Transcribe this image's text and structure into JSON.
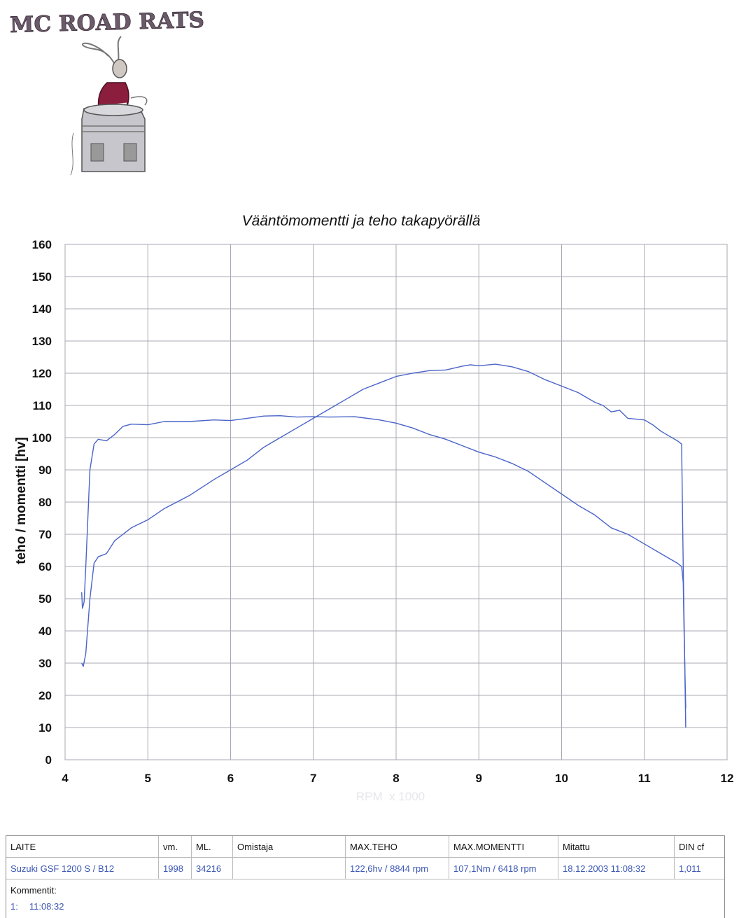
{
  "logo": {
    "text": "MC ROAD RATS"
  },
  "colors": {
    "curve": "#4a64c8",
    "grid": "#a9a9b3",
    "logo": "#6b5a6a",
    "suit": "#8a1e3c",
    "table_values": "#3a56b4"
  },
  "chart_data": {
    "type": "line",
    "title": "Vääntömomentti ja teho takapyörällä",
    "xlabel": "RPM  x 1000",
    "ylabel": "teho / momentti [hv]",
    "xlim": [
      4,
      12
    ],
    "ylim": [
      0,
      160
    ],
    "x_ticks": [
      "4",
      "5",
      "6",
      "7",
      "8",
      "9",
      "10",
      "11",
      "12"
    ],
    "y_ticks": [
      "0",
      "10",
      "20",
      "30",
      "40",
      "50",
      "60",
      "70",
      "80",
      "90",
      "100",
      "110",
      "120",
      "130",
      "140",
      "150",
      "160"
    ],
    "grid": true,
    "series": [
      {
        "points": [
          [
            4.2,
            30
          ],
          [
            4.22,
            29
          ],
          [
            4.25,
            33
          ],
          [
            4.3,
            50
          ],
          [
            4.35,
            61
          ],
          [
            4.4,
            63
          ],
          [
            4.5,
            64
          ],
          [
            4.6,
            68
          ],
          [
            4.8,
            72
          ],
          [
            5.0,
            74.5
          ],
          [
            5.2,
            78
          ],
          [
            5.5,
            82
          ],
          [
            5.8,
            87
          ],
          [
            6.0,
            90
          ],
          [
            6.2,
            93
          ],
          [
            6.4,
            97
          ],
          [
            6.6,
            100
          ],
          [
            6.8,
            103
          ],
          [
            7.0,
            106
          ],
          [
            7.2,
            109
          ],
          [
            7.4,
            112
          ],
          [
            7.6,
            115
          ],
          [
            7.8,
            117
          ],
          [
            8.0,
            119
          ],
          [
            8.2,
            120
          ],
          [
            8.4,
            120.8
          ],
          [
            8.6,
            121
          ],
          [
            8.8,
            122.2
          ],
          [
            8.9,
            122.6
          ],
          [
            9.0,
            122.3
          ],
          [
            9.2,
            122.8
          ],
          [
            9.4,
            122
          ],
          [
            9.6,
            120.5
          ],
          [
            9.8,
            118
          ],
          [
            10.0,
            116
          ],
          [
            10.2,
            114
          ],
          [
            10.4,
            111
          ],
          [
            10.5,
            110
          ],
          [
            10.6,
            108
          ],
          [
            10.7,
            108.5
          ],
          [
            10.8,
            106
          ],
          [
            11.0,
            105.5
          ],
          [
            11.1,
            104
          ],
          [
            11.2,
            102
          ],
          [
            11.3,
            100.5
          ],
          [
            11.4,
            99
          ],
          [
            11.45,
            98
          ],
          [
            11.47,
            60
          ],
          [
            11.5,
            10
          ]
        ]
      },
      {
        "points": [
          [
            4.2,
            52
          ],
          [
            4.21,
            47
          ],
          [
            4.23,
            49
          ],
          [
            4.25,
            60
          ],
          [
            4.3,
            90
          ],
          [
            4.35,
            98
          ],
          [
            4.4,
            99.5
          ],
          [
            4.5,
            99
          ],
          [
            4.6,
            101
          ],
          [
            4.7,
            103.5
          ],
          [
            4.8,
            104.2
          ],
          [
            5.0,
            104
          ],
          [
            5.2,
            105
          ],
          [
            5.5,
            105
          ],
          [
            5.8,
            105.5
          ],
          [
            6.0,
            105.3
          ],
          [
            6.2,
            106
          ],
          [
            6.4,
            106.7
          ],
          [
            6.6,
            106.8
          ],
          [
            6.8,
            106.4
          ],
          [
            7.0,
            106.5
          ],
          [
            7.2,
            106.4
          ],
          [
            7.5,
            106.5
          ],
          [
            7.8,
            105.5
          ],
          [
            8.0,
            104.5
          ],
          [
            8.2,
            103
          ],
          [
            8.4,
            101
          ],
          [
            8.6,
            99.5
          ],
          [
            8.8,
            97.5
          ],
          [
            9.0,
            95.5
          ],
          [
            9.2,
            94
          ],
          [
            9.4,
            92
          ],
          [
            9.6,
            89.5
          ],
          [
            9.8,
            86
          ],
          [
            10.0,
            82.5
          ],
          [
            10.2,
            79
          ],
          [
            10.4,
            76
          ],
          [
            10.6,
            72
          ],
          [
            10.8,
            70
          ],
          [
            11.0,
            67
          ],
          [
            11.2,
            64
          ],
          [
            11.4,
            61
          ],
          [
            11.45,
            60
          ],
          [
            11.47,
            55
          ],
          [
            11.48,
            40
          ],
          [
            11.5,
            16
          ]
        ]
      }
    ]
  },
  "info_table": {
    "headers": {
      "laite": "LAITE",
      "vm": "vm.",
      "ml": "ML.",
      "omistaja": "Omistaja",
      "max_teho": "MAX.TEHO",
      "max_momentti": "MAX.MOMENTTI",
      "mitattu": "Mitattu",
      "din_cf": "DIN cf"
    },
    "values": {
      "laite": "Suzuki GSF 1200 S / B12",
      "vm": "1998",
      "ml": "34216",
      "omistaja": "",
      "max_teho": "122,6hv / 8844 rpm",
      "max_momentti": "107,1Nm / 6418 rpm",
      "mitattu": "18.12.2003 11:08:32",
      "din_cf": "1,011"
    },
    "comment_label": "Kommentit:",
    "comment_index": "1:",
    "comment_time": "11:08:32"
  }
}
